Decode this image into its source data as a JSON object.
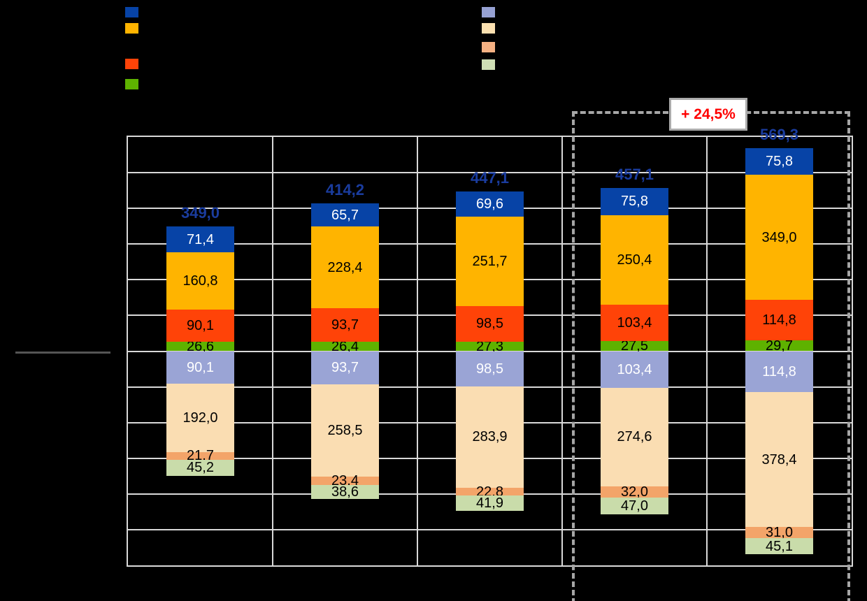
{
  "canvas": {
    "background": "#000000"
  },
  "legend_left": {
    "swatches": [
      {
        "name": "dark-blue",
        "color": "#0743A6"
      },
      {
        "name": "orange",
        "color": "#FFB400"
      },
      {
        "name": "red-orange",
        "color": "#FF4308"
      },
      {
        "name": "green",
        "color": "#5EB200"
      }
    ]
  },
  "legend_right": {
    "swatches": [
      {
        "name": "lavender",
        "color": "#96A1D3"
      },
      {
        "name": "peach",
        "color": "#FBE0B0"
      },
      {
        "name": "salmon",
        "color": "#F5B183"
      },
      {
        "name": "light-green",
        "color": "#CFDFB5"
      }
    ]
  },
  "divider_line": {
    "color": "#555555"
  },
  "highlight_box": {
    "border_color": "#A6A6A6"
  },
  "annotation_box": {
    "label": "+ 24,5%",
    "text_color": "#FF0000",
    "fill": "#FFFFFF",
    "border_color": "#ABABAB"
  },
  "chart_data": {
    "type": "bar",
    "subtype": "mirrored-stacked",
    "n_categories": 5,
    "ylim": [
      -600,
      600
    ],
    "grid_step": 100,
    "grid_on": true,
    "grid_color": "#D9D9D9",
    "totals_color": "#1A3C9E",
    "totals": [
      349.0,
      414.2,
      447.1,
      457.1,
      569.3
    ],
    "totals_labels": [
      "349,0",
      "414,2",
      "447,1",
      "457,1",
      "569,3"
    ],
    "series_above": [
      {
        "name": "green",
        "color": "#5EB200",
        "text_color": "#000000",
        "values": [
          26.6,
          26.4,
          27.3,
          27.5,
          29.7
        ],
        "labels": [
          "26,6",
          "26,4",
          "27,3",
          "27,5",
          "29,7"
        ]
      },
      {
        "name": "red-orange",
        "color": "#FF4308",
        "text_color": "#000000",
        "values": [
          90.1,
          93.7,
          98.5,
          103.4,
          114.8
        ],
        "labels": [
          "90,1",
          "93,7",
          "98,5",
          "103,4",
          "114,8"
        ]
      },
      {
        "name": "orange",
        "color": "#FFB400",
        "text_color": "#000000",
        "values": [
          160.8,
          228.4,
          251.7,
          250.4,
          349.0
        ],
        "labels": [
          "160,8",
          "228,4",
          "251,7",
          "250,4",
          "349,0"
        ]
      },
      {
        "name": "dark-blue",
        "color": "#0743A6",
        "text_color": "#FFFFFF",
        "values": [
          71.4,
          65.7,
          69.6,
          75.8,
          75.8
        ],
        "labels": [
          "71,4",
          "65,7",
          "69,6",
          "75,8",
          "75,8"
        ]
      }
    ],
    "series_below": [
      {
        "name": "lavender",
        "color": "#9AA4D5",
        "text_color": "#FFFFFF",
        "values": [
          90.1,
          93.7,
          98.5,
          103.4,
          114.8
        ],
        "labels": [
          "90,1",
          "93,7",
          "98,5",
          "103,4",
          "114,8"
        ]
      },
      {
        "name": "peach",
        "color": "#FADDB2",
        "text_color": "#000000",
        "values": [
          192.0,
          258.5,
          283.9,
          274.6,
          378.4
        ],
        "labels": [
          "192,0",
          "258,5",
          "283,9",
          "274,6",
          "378,4"
        ]
      },
      {
        "name": "salmon",
        "color": "#F3A469",
        "text_color": "#000000",
        "values": [
          21.7,
          23.4,
          22.8,
          32.0,
          31.0
        ],
        "labels": [
          "21,7",
          "23,4",
          "22,8",
          "32,0",
          "31,0"
        ]
      },
      {
        "name": "light-green",
        "color": "#C9DCAA",
        "text_color": "#000000",
        "values": [
          45.2,
          38.6,
          41.9,
          47.0,
          45.1
        ],
        "labels": [
          "45,2",
          "38,6",
          "41,9",
          "47,0",
          "45,1"
        ]
      }
    ],
    "highlight": {
      "categories": [
        3,
        4
      ],
      "label": "+ 24,5%"
    }
  }
}
